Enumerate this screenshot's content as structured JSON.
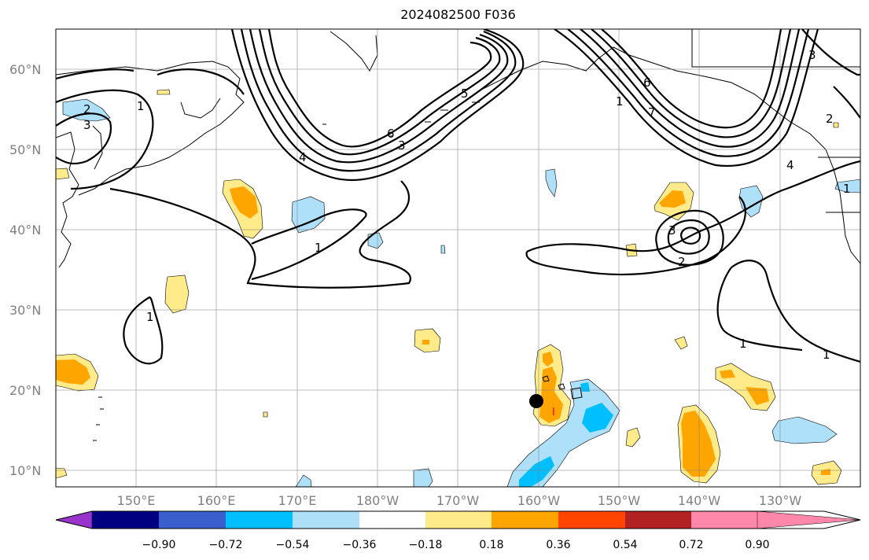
{
  "title": "2024082500 F036",
  "map": {
    "lat_labels": [
      "60°N",
      "50°N",
      "40°N",
      "30°N",
      "20°N",
      "10°N"
    ],
    "lon_labels": [
      "150°E",
      "160°E",
      "170°E",
      "180°W",
      "170°W",
      "160°W",
      "150°W",
      "140°W",
      "130°W"
    ],
    "contour_labels": [
      "2",
      "1",
      "3",
      "5",
      "6",
      "4",
      "3",
      "1",
      "6",
      "7",
      "4",
      "3",
      "1",
      "2",
      "2",
      "3",
      "1",
      "1",
      "1",
      "1"
    ],
    "marker": {
      "label": "I",
      "color": "#ff0000"
    }
  },
  "colorbar": {
    "ticks": [
      "−0.90",
      "−0.72",
      "−0.54",
      "−0.36",
      "−0.18",
      "0.18",
      "0.36",
      "0.54",
      "0.72",
      "0.90"
    ],
    "colors": [
      "#9933cc",
      "#000080",
      "#3a5fcd",
      "#00bfff",
      "#aee0fa",
      "#ffffff",
      "#ffeb8a",
      "#ffa500",
      "#ff4500",
      "#b22222",
      "#ff88aa"
    ]
  },
  "colors": {
    "positive_light": "#ffeb8a",
    "positive_mid": "#ffa500",
    "negative_light": "#aee0fa",
    "negative_mid": "#00bfff"
  }
}
